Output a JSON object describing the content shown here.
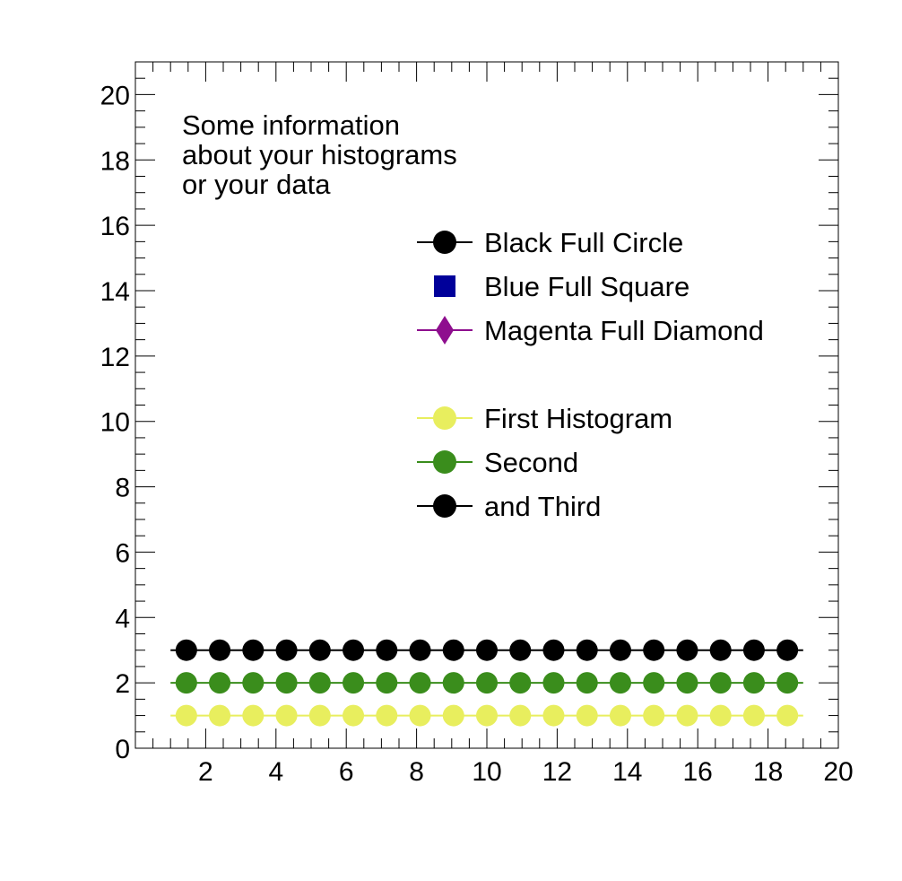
{
  "chart_data": {
    "type": "line",
    "title": "",
    "xlabel": "",
    "ylabel": "",
    "xlim": [
      0,
      20
    ],
    "ylim": [
      0,
      21
    ],
    "x_ticks": [
      "2",
      "4",
      "6",
      "8",
      "10",
      "12",
      "14",
      "16",
      "18",
      "20"
    ],
    "y_ticks": [
      "0",
      "2",
      "4",
      "6",
      "8",
      "10",
      "12",
      "14",
      "16",
      "18",
      "20"
    ],
    "grid": false,
    "x": [
      1.45,
      2.4,
      3.35,
      4.3,
      5.25,
      6.2,
      7.15,
      8.1,
      9.05,
      10.0,
      10.95,
      11.9,
      12.85,
      13.8,
      14.75,
      15.7,
      16.65,
      17.6,
      18.55
    ],
    "line_span": [
      1.0,
      19.0
    ],
    "series": [
      {
        "name": "First Histogram",
        "color": "#e8ee5e",
        "marker": "circle",
        "values": [
          1,
          1,
          1,
          1,
          1,
          1,
          1,
          1,
          1,
          1,
          1,
          1,
          1,
          1,
          1,
          1,
          1,
          1,
          1
        ]
      },
      {
        "name": "Second",
        "color": "#3a8d1c",
        "marker": "circle",
        "values": [
          2,
          2,
          2,
          2,
          2,
          2,
          2,
          2,
          2,
          2,
          2,
          2,
          2,
          2,
          2,
          2,
          2,
          2,
          2
        ]
      },
      {
        "name": "and Third",
        "color": "#000000",
        "marker": "circle",
        "values": [
          3,
          3,
          3,
          3,
          3,
          3,
          3,
          3,
          3,
          3,
          3,
          3,
          3,
          3,
          3,
          3,
          3,
          3,
          3
        ]
      }
    ],
    "annotation": [
      "Some information",
      "about your histograms",
      "or your data"
    ],
    "legend": {
      "placement": "top-right",
      "entries": [
        {
          "label": "Black Full Circle",
          "color": "#000000",
          "marker": "circle",
          "line": true
        },
        {
          "label": "Blue Full Square",
          "color": "#00009a",
          "marker": "square",
          "line": false
        },
        {
          "label": "Magenta Full Diamond",
          "color": "#8e0e8e",
          "marker": "diamond",
          "line": true
        },
        {
          "label": "",
          "color": "",
          "marker": "none",
          "line": false
        },
        {
          "label": "First Histogram",
          "color": "#e8ee5e",
          "marker": "circle",
          "line": true
        },
        {
          "label": "Second",
          "color": "#3a8d1c",
          "marker": "circle",
          "line": true
        },
        {
          "label": "and Third",
          "color": "#000000",
          "marker": "circle",
          "line": true
        }
      ]
    }
  }
}
